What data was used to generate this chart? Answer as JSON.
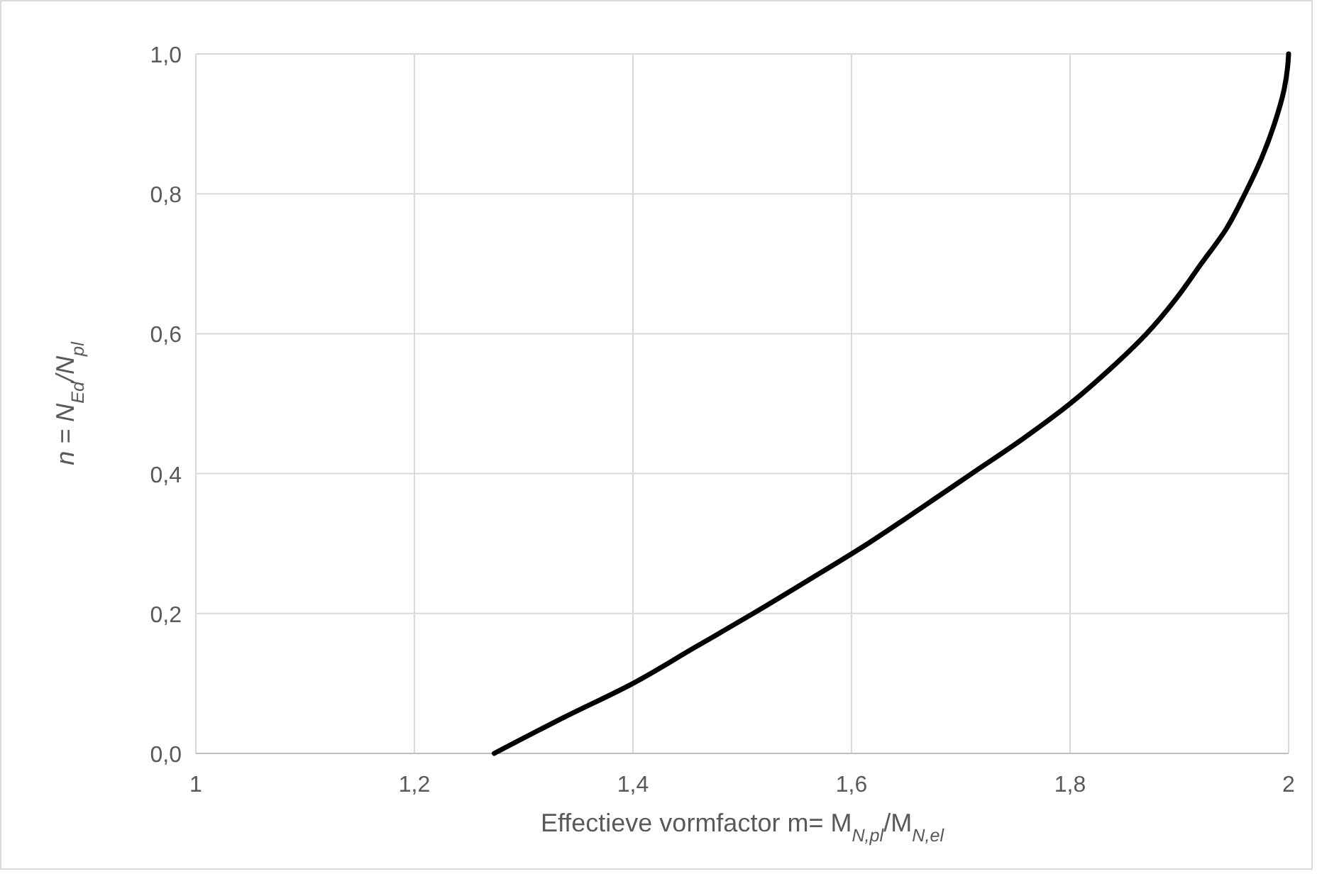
{
  "chart_data": {
    "type": "line",
    "xlabel": "Effectieve vormfactor m= M$_{N,pl}$/M$_{N,el}$",
    "ylabel": "n = N$_{Ed}$/N$_{pl}$",
    "x": [
      1.273,
      1.335,
      1.4,
      1.455,
      1.51,
      1.563,
      1.615,
      1.663,
      1.71,
      1.757,
      1.8,
      1.837,
      1.87,
      1.897,
      1.92,
      1.943,
      1.96,
      1.975,
      1.987,
      1.996,
      1.999,
      2.0
    ],
    "series": [
      {
        "color": "#000000",
        "values": [
          0,
          0.05,
          0.1,
          0.15,
          0.2,
          0.25,
          0.3,
          0.35,
          0.4,
          0.45,
          0.5,
          0.55,
          0.6,
          0.65,
          0.7,
          0.75,
          0.8,
          0.85,
          0.9,
          0.95,
          0.98,
          1.0
        ]
      }
    ],
    "xlim": [
      1,
      2
    ],
    "ylim": [
      0,
      1
    ],
    "xticks": [
      1,
      {
        "value": 1.2,
        "label": "1,2"
      },
      {
        "value": 1.4,
        "label": "1,4"
      },
      {
        "value": 1.6,
        "label": "1,6"
      },
      {
        "value": 1.8,
        "label": "1,8"
      },
      2
    ],
    "yticks": [
      {
        "value": 0,
        "label": "0,0"
      },
      {
        "value": 0.2,
        "label": "0,2"
      },
      {
        "value": 0.4,
        "label": "0,4"
      },
      {
        "value": 0.6,
        "label": "0,6"
      },
      {
        "value": 0.8,
        "label": "0,8"
      },
      {
        "value": 1,
        "label": "1,0"
      }
    ],
    "grid": true,
    "marker": "none",
    "line_style": "solid"
  }
}
